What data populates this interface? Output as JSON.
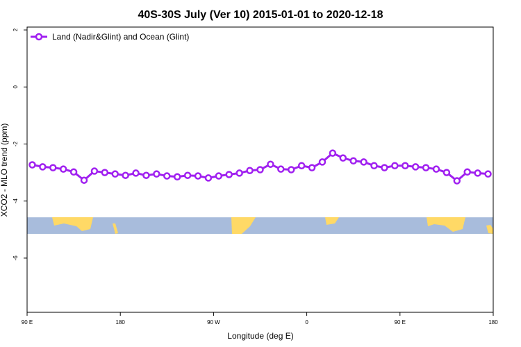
{
  "chart_data": {
    "type": "line",
    "title": "40S-30S July (Ver 10)   2015-01-01 to 2020-12-18",
    "xlabel": "Longitude (deg E)",
    "ylabel": "XCO2 - MLO trend (ppm)",
    "xlim": [
      90,
      540
    ],
    "ylim": [
      -7.9,
      2.1
    ],
    "x_ticks": [
      90,
      180,
      270,
      360,
      450,
      540
    ],
    "x_tick_labels": [
      "90 E",
      "180",
      "90 W",
      "0",
      "90 E",
      "180"
    ],
    "y_ticks": [
      2,
      0,
      -2,
      -4,
      -6
    ],
    "y_tick_labels": [
      "2",
      "0",
      "-2",
      "-4",
      "-6"
    ],
    "grid": false,
    "legend_position": "top-left",
    "series": [
      {
        "name": "Land (Nadir&Glint) and Ocean (Glint)",
        "color": "#a020f0",
        "x": [
          95,
          105,
          115,
          125,
          135,
          145,
          155,
          165,
          175,
          185,
          195,
          205,
          215,
          225,
          235,
          245,
          255,
          265,
          275,
          285,
          295,
          305,
          315,
          325,
          335,
          345,
          355,
          365,
          375,
          385,
          395,
          405,
          415,
          425,
          435,
          445,
          455,
          465,
          475,
          485,
          495,
          505,
          515,
          525,
          535
        ],
        "values": [
          -2.73,
          -2.8,
          -2.83,
          -2.88,
          -2.98,
          -3.27,
          -2.95,
          -3.0,
          -3.05,
          -3.1,
          -3.02,
          -3.1,
          -3.05,
          -3.12,
          -3.15,
          -3.1,
          -3.12,
          -3.19,
          -3.12,
          -3.07,
          -3.02,
          -2.93,
          -2.9,
          -2.71,
          -2.88,
          -2.9,
          -2.76,
          -2.83,
          -2.63,
          -2.32,
          -2.49,
          -2.59,
          -2.63,
          -2.76,
          -2.83,
          -2.76,
          -2.76,
          -2.8,
          -2.83,
          -2.88,
          -3.0,
          -3.29,
          -2.98,
          -3.02,
          -3.05
        ]
      }
    ],
    "map_band": {
      "lat_range": [
        -40,
        -30
      ],
      "ocean_color": "#a8bcdc",
      "land_color": "#ffd966"
    }
  }
}
